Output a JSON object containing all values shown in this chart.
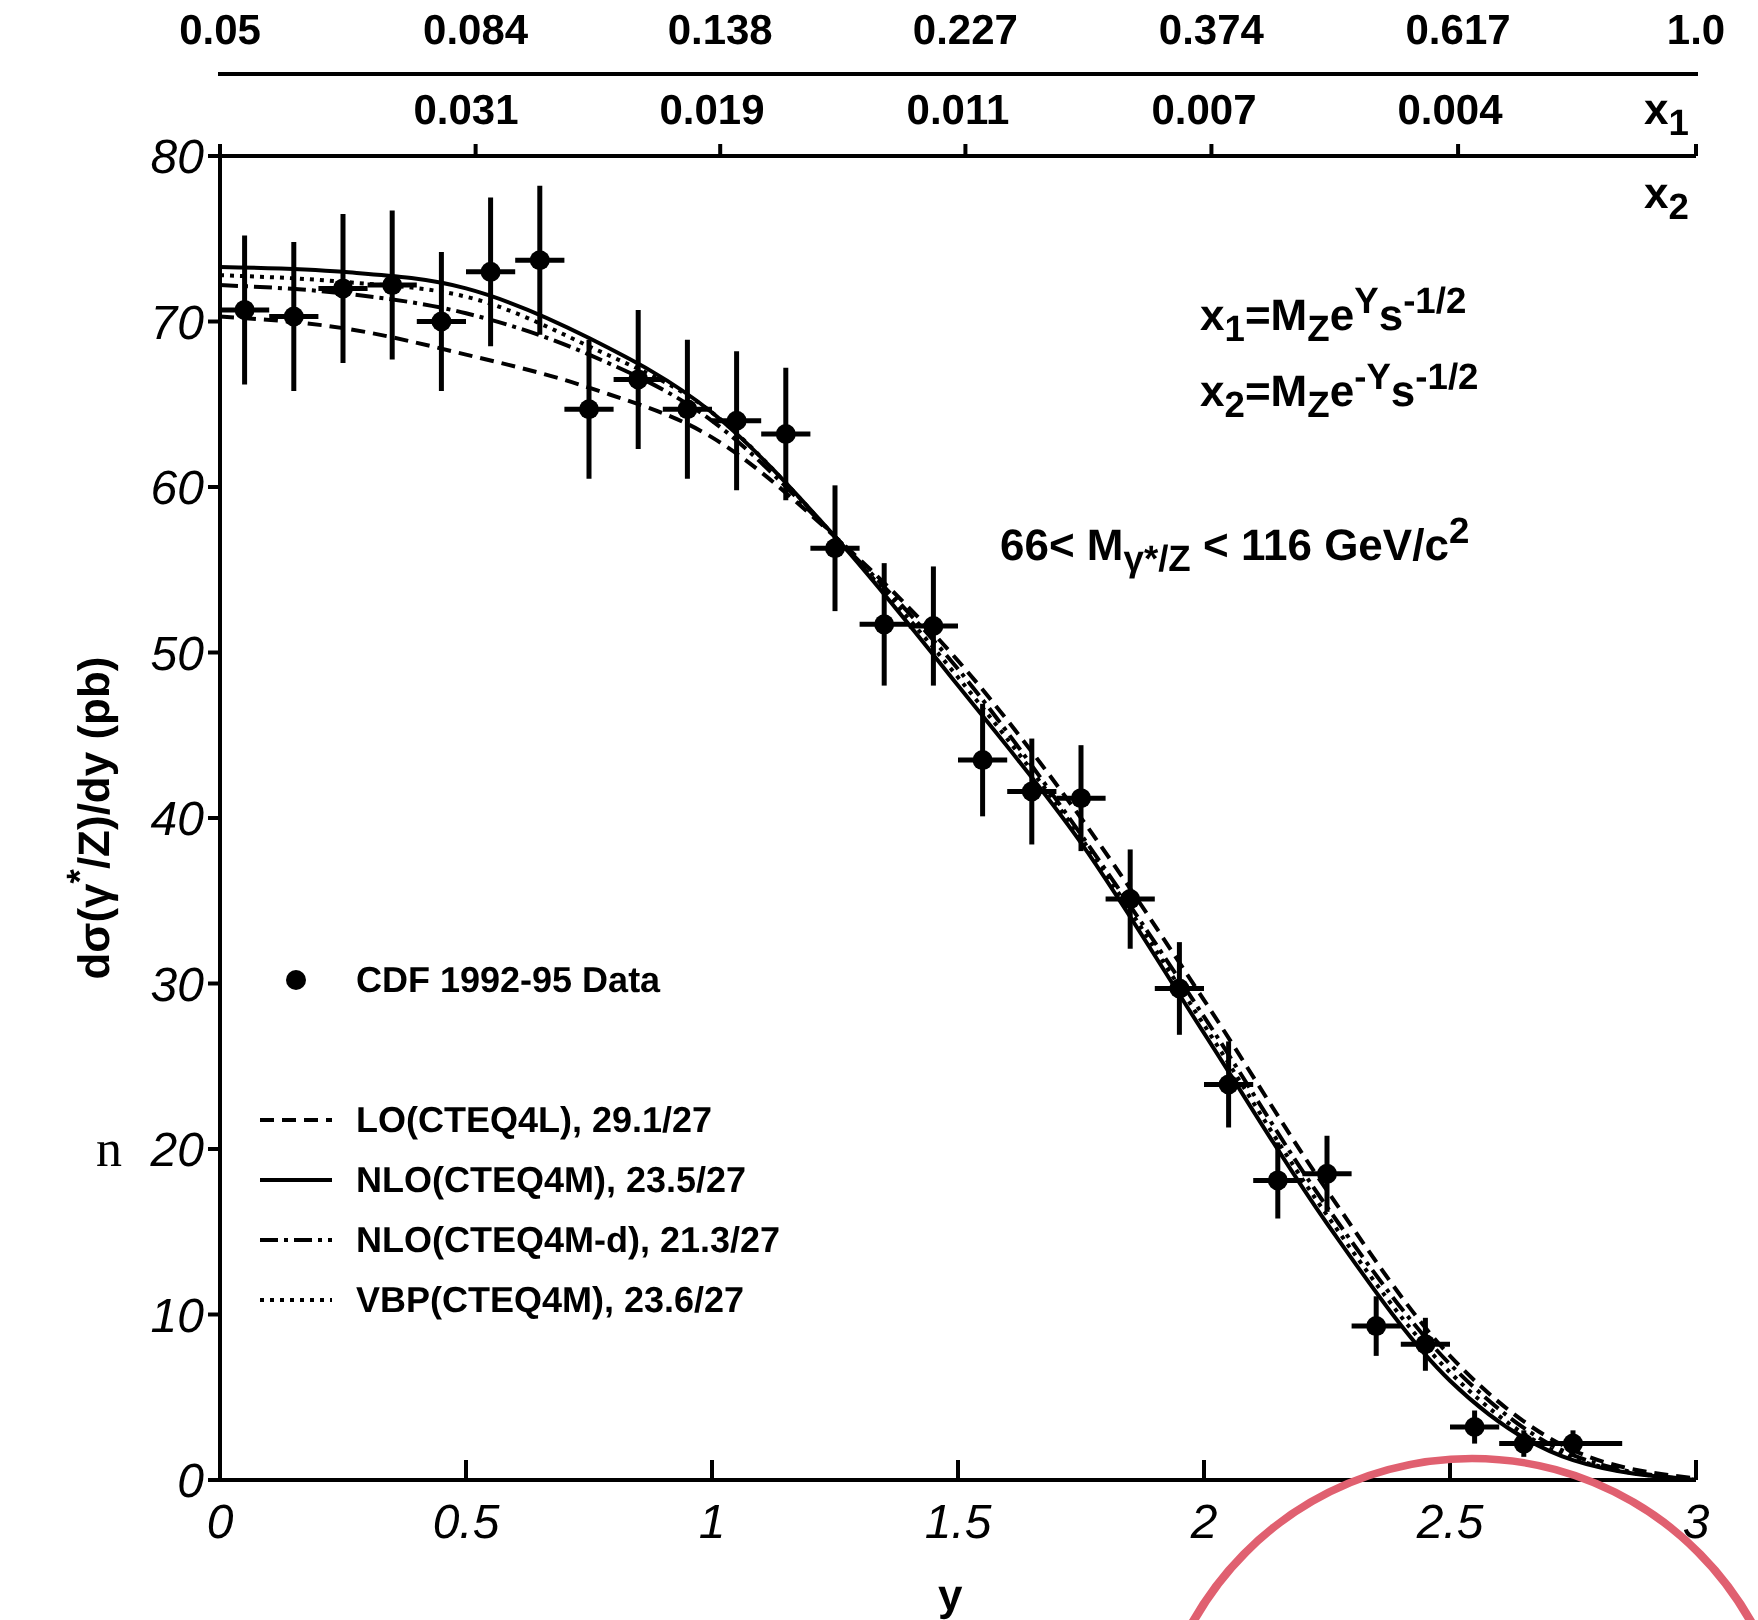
{
  "chart_data": {
    "type": "scatter",
    "xlabel": "y",
    "ylabel": "dσ(γ$^{*}$/Z)/dy (pb)",
    "x2label": "x$_{1}$",
    "xlim": [
      0,
      3
    ],
    "xticks": [
      0,
      0.5,
      1,
      1.5,
      2,
      2.5,
      3
    ],
    "ylim": [
      0,
      80
    ],
    "yticks": [
      0,
      10,
      20,
      30,
      40,
      50,
      60,
      70,
      80
    ],
    "x2lim": [
      0.05,
      1.0
    ],
    "x2ticks": [
      0.05,
      0.084,
      0.138,
      0.227,
      0.374,
      0.617,
      {
        "value": 1.0,
        "label": "1.0"
      }
    ],
    "log": "x2",
    "legend": "bottom left",
    "grid": false,
    "annotations": [
      "x$_{1}$=M$_{Z}$e$^{Y}$s$^{-1/2}$",
      "x$_{2}$=M$_{Z}$e$^{-Y}$s$^{-1/2}$",
      "66< M$_{γ*/Z}$ < 116 GeV/c$^{2}$",
      "n",
      "0.031",
      "0.019",
      "0.011",
      "0.007",
      "0.004",
      "x$_{2}$"
    ],
    "series": [
      {
        "name": "CDF 1992-95 Data",
        "type": "scatter",
        "marker": "circle",
        "color": "#000000",
        "x": [
          0.05,
          0.15,
          0.25,
          0.35,
          0.45,
          0.55,
          0.65,
          0.75,
          0.85,
          0.95,
          1.05,
          1.15,
          1.25,
          1.35,
          1.45,
          1.55,
          1.65,
          1.75,
          1.85,
          1.95,
          2.05,
          2.15,
          2.25,
          2.35,
          2.45,
          2.55,
          2.65,
          2.75
        ],
        "values": [
          70.7,
          70.3,
          72,
          72.2,
          70,
          73,
          73.7,
          64.7,
          66.5,
          64.7,
          64,
          63.2,
          56.3,
          51.7,
          51.6,
          43.5,
          41.6,
          41.2,
          35.1,
          29.7,
          23.9,
          18.1,
          18.5,
          9.3,
          8.2,
          3.2,
          2.2,
          2.2
        ],
        "errors": [
          4.5,
          4.5,
          4.5,
          4.5,
          4.2,
          4.5,
          4.5,
          4.2,
          4.2,
          4.2,
          4.2,
          4,
          3.8,
          3.7,
          3.6,
          3.4,
          3.2,
          3.2,
          3,
          2.8,
          2.6,
          2.3,
          2.3,
          1.8,
          1.6,
          1,
          0.8,
          0.8
        ],
        "xerrors": [
          0.05,
          0.05,
          0.05,
          0.05,
          0.05,
          0.05,
          0.05,
          0.05,
          0.05,
          0.05,
          0.05,
          0.05,
          0.05,
          0.05,
          0.05,
          0.05,
          0.05,
          0.05,
          0.05,
          0.05,
          0.05,
          0.05,
          0.05,
          0.05,
          0.05,
          0.05,
          0.05,
          0.1
        ]
      },
      {
        "name": "LO(CTEQ4L), 29.1/27",
        "type": "line",
        "line_style": "dashed",
        "color": "#000000",
        "x": [
          0,
          0.25,
          0.5,
          0.75,
          1,
          1.25,
          1.5,
          1.75,
          2,
          2.25,
          2.5,
          2.75,
          3
        ],
        "values": [
          70.3,
          69.6,
          68,
          66,
          63,
          57,
          49.5,
          40,
          29,
          17.5,
          7.5,
          1.8,
          0.1
        ]
      },
      {
        "name": "NLO(CTEQ4M), 23.5/27",
        "type": "line",
        "line_style": "solid",
        "color": "#000000",
        "x": [
          0,
          0.25,
          0.5,
          0.75,
          1,
          1.25,
          1.5,
          1.75,
          2,
          2.25,
          2.5,
          2.75,
          3
        ],
        "values": [
          73.3,
          73,
          72,
          69,
          64.5,
          57,
          48,
          38.5,
          27,
          15.5,
          6,
          1.2,
          0
        ]
      },
      {
        "name": "NLO(CTEQ4M-d), 21.3/27",
        "type": "line",
        "line_style": "dashdot",
        "color": "#000000",
        "x": [
          0,
          0.25,
          0.5,
          0.75,
          1,
          1.25,
          1.5,
          1.75,
          2,
          2.25,
          2.5,
          2.75,
          3
        ],
        "values": [
          72.2,
          71.7,
          70.5,
          68,
          64,
          57,
          49,
          39,
          28,
          16.5,
          7,
          1.5,
          0
        ]
      },
      {
        "name": "VBP(CTEQ4M), 23.6/27",
        "type": "line",
        "line_style": "dotted",
        "color": "#000000",
        "x": [
          0,
          0.25,
          0.5,
          0.75,
          1,
          1.25,
          1.5,
          1.75,
          2,
          2.25,
          2.5,
          2.75,
          3
        ],
        "values": [
          72.8,
          72.4,
          71.5,
          68.5,
          64.5,
          57,
          48.5,
          38.8,
          27.5,
          16,
          6.5,
          1.3,
          0
        ]
      }
    ]
  }
}
